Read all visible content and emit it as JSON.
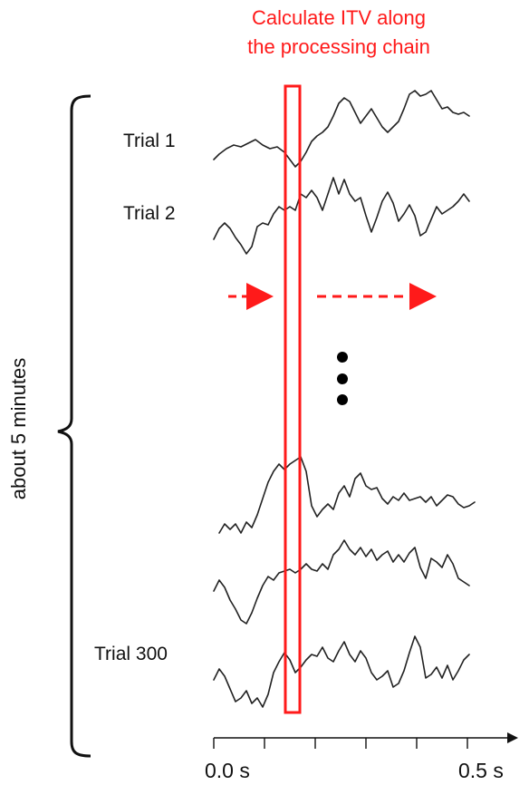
{
  "header": {
    "line1": "Calculate ITV along",
    "line2": "the processing chain"
  },
  "duration_label": "about 5 minutes",
  "trials": {
    "first": "Trial 1",
    "second": "Trial 2",
    "last": "Trial 300"
  },
  "axis": {
    "start_label": "0.0 s",
    "end_label": "0.5 s"
  },
  "colors": {
    "highlight": "#ff1a1a",
    "trace": "#222222"
  }
}
